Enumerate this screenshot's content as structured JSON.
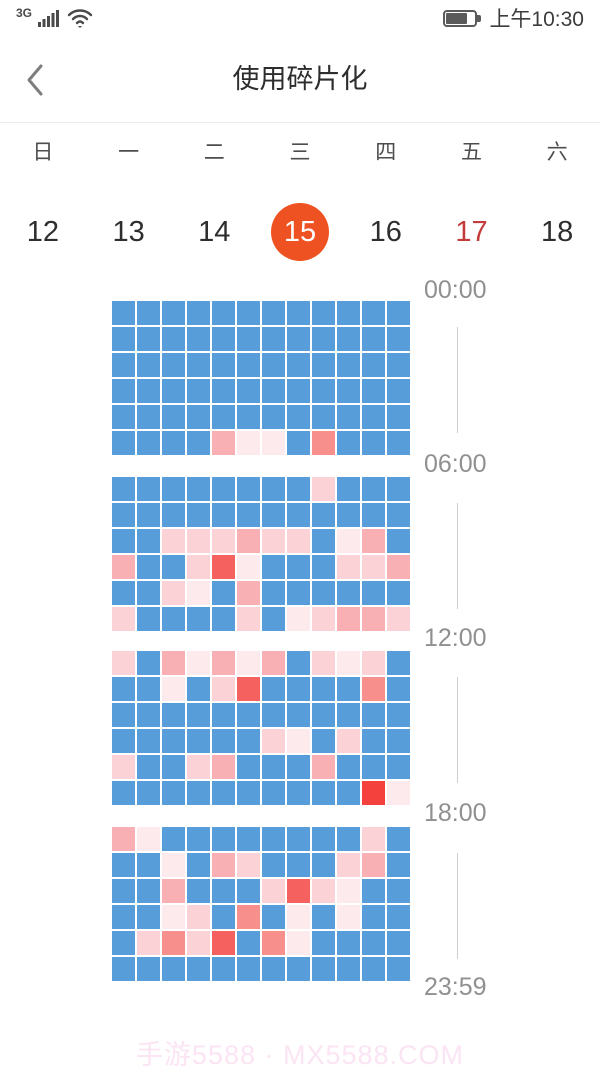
{
  "status_bar": {
    "network": "3G",
    "time": "上午10:30",
    "icons": [
      "signal-strength-icon",
      "wifi-icon",
      "battery-icon"
    ]
  },
  "header": {
    "title": "使用碎片化",
    "back_icon": "chevron-left"
  },
  "calendar": {
    "weekdays": [
      "日",
      "一",
      "二",
      "三",
      "四",
      "五",
      "六"
    ],
    "dates": [
      {
        "label": "12",
        "state": "normal"
      },
      {
        "label": "13",
        "state": "normal"
      },
      {
        "label": "14",
        "state": "normal"
      },
      {
        "label": "15",
        "state": "selected"
      },
      {
        "label": "16",
        "state": "normal"
      },
      {
        "label": "17",
        "state": "holiday"
      },
      {
        "label": "18",
        "state": "normal"
      }
    ],
    "selected_color": "#ef5222",
    "holiday_color": "#c43b3b"
  },
  "heatmap": {
    "time_labels": [
      "00:00",
      "06:00",
      "12:00",
      "18:00",
      "23:59"
    ],
    "cell_colors": {
      "b": "#579dda",
      "1": "#fdeaec",
      "2": "#fbd2d6",
      "3": "#f8b0b5",
      "4": "#f78f8d",
      "5": "#f4615e",
      "6": "#f5413d"
    },
    "blocks": [
      [
        "bbbbbbbbbbbb",
        "bbbbbbbbbbbb",
        "bbbbbbbbbbbb",
        "bbbbbbbbbbbb",
        "bbbbbbbbbbbb",
        "bbbb311b4bbb"
      ],
      [
        "bbbbbbbb2bbb",
        "bbbbbbbbbbbb",
        "bb222322b13b",
        "3bb251bbb223",
        "bb21b3bbbbbb",
        "2bbbb2b12332"
      ],
      [
        "2b31313b212b",
        "bb1b25bbbb4b",
        "bbbbbbbbbbbb",
        "bbbbbb21b2bb",
        "2bb23bbb3bbb",
        "bbbbbbbbbb61"
      ],
      [
        "31bbbbbbbb2b",
        "bb1b32bbb23b",
        "bb3bbb2521bb",
        "bb12b4b1b1bb",
        "b2425b41bbbb",
        "bbbbbbbbbbbb"
      ]
    ]
  },
  "watermark": "手游5588 · MX5588.COM"
}
